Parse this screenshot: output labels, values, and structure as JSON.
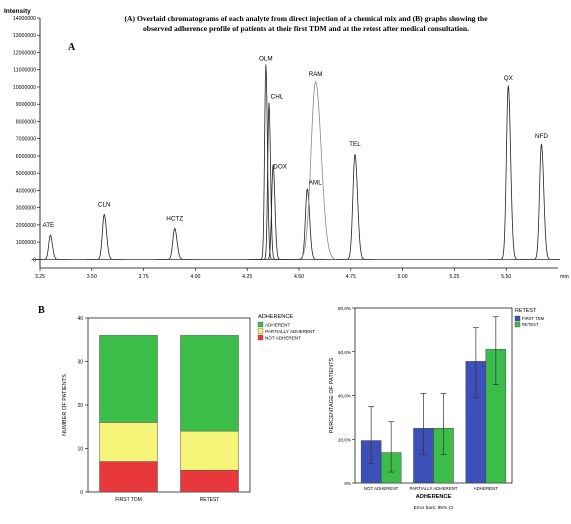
{
  "caption": {
    "line1": "(A) Overlaid chromatograms of each analyte from direct injection of a chemical mix and (B) graphs showing the",
    "line2": "observed adherence profile of patients at their first TDM and at the retest after medical consultation."
  },
  "chart_data": [
    {
      "type": "line",
      "panel_label": "A",
      "ylabel": "Intensity",
      "xlabel": "min",
      "xlim": [
        3.25,
        5.75
      ],
      "ylim": [
        -500000,
        14000000
      ],
      "x_ticks": [
        "3.25",
        "3.50",
        "3.75",
        "4.00",
        "4.25",
        "4.50",
        "4.75",
        "5.00",
        "5.25",
        "5.50",
        "min"
      ],
      "y_ticks": [
        "14000000",
        "13000000",
        "12000000",
        "11000000",
        "10000000",
        "9000000",
        "8000000",
        "7000000",
        "6000000",
        "5000000",
        "4000000",
        "3000000",
        "2000000",
        "1000000",
        "0"
      ],
      "peaks": [
        {
          "name": "ATE",
          "rt": 3.3,
          "height": 1400000
        },
        {
          "name": "CLN",
          "rt": 3.56,
          "height": 2600000
        },
        {
          "name": "HCTZ",
          "rt": 3.9,
          "height": 1800000
        },
        {
          "name": "OLM",
          "rt": 4.34,
          "height": 11300000
        },
        {
          "name": "CHL",
          "rt": 4.355,
          "height": 9100000
        },
        {
          "name": "DOX",
          "rt": 4.375,
          "height": 5500000
        },
        {
          "name": "AML",
          "rt": 4.54,
          "height": 4100000
        },
        {
          "name": "RAM",
          "rt": 4.58,
          "height": 10300000
        },
        {
          "name": "TEL",
          "rt": 4.77,
          "height": 6100000
        },
        {
          "name": "QX",
          "rt": 5.51,
          "height": 10100000
        },
        {
          "name": "NFD",
          "rt": 5.67,
          "height": 6700000
        }
      ]
    },
    {
      "type": "bar",
      "stacked": true,
      "panel_label": "B",
      "categories": [
        "FIRST TDM",
        "RETEST"
      ],
      "ylabel": "NUMBER OF PATIENTS",
      "ylim": [
        0,
        40
      ],
      "y_ticks": [
        "0",
        "10",
        "20",
        "30",
        "40"
      ],
      "legend_title": "ADHERENCE",
      "legend_position": "top-right",
      "series": [
        {
          "name": "NOT ADHERENT",
          "color": "#e8383b",
          "values": [
            7,
            5
          ]
        },
        {
          "name": "PARTIALLY ADHERENT",
          "color": "#f7f47a",
          "values": [
            9,
            9
          ]
        },
        {
          "name": "ADHERENT",
          "color": "#3cbd4a",
          "values": [
            20,
            22
          ]
        }
      ]
    },
    {
      "type": "bar",
      "panel_label": "",
      "categories": [
        "NOT ADHERENT",
        "PARTIALLY ADHERENT",
        "ADHERENT"
      ],
      "xlabel": "ADHERENCE",
      "ylabel": "PERCENTAGE OF PATIENTS",
      "ylim": [
        0,
        80
      ],
      "y_ticks": [
        "0%",
        "20,0%",
        "40,0%",
        "60,0%",
        "80,0%"
      ],
      "legend_title": "RETEST",
      "legend_position": "top-right",
      "note": "Error bars: 95% CI",
      "series": [
        {
          "name": "FIRST TDM",
          "color": "#3d4fb8",
          "values": [
            19.4,
            25.0,
            55.6
          ],
          "ci_low": [
            9,
            13,
            39
          ],
          "ci_high": [
            35,
            41,
            71
          ]
        },
        {
          "name": "RETEST",
          "color": "#3cbd4a",
          "values": [
            13.9,
            25.0,
            61.1
          ],
          "ci_low": [
            5,
            13,
            45
          ],
          "ci_high": [
            28,
            41,
            76
          ]
        }
      ]
    }
  ]
}
